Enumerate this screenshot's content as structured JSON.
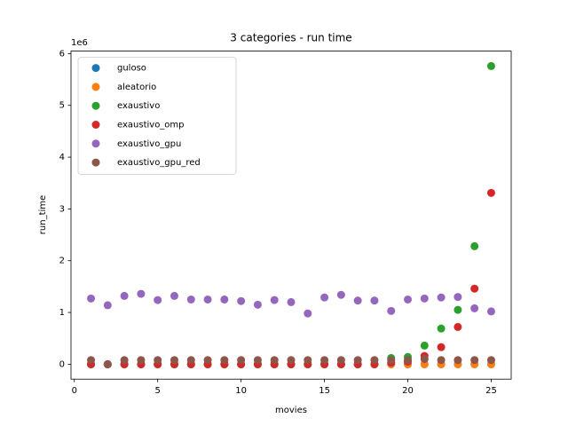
{
  "chart_data": {
    "type": "scatter",
    "title": "3 categories - run time",
    "x_label": "movies",
    "y_label": "run_time",
    "y_offset_text": "1e6",
    "x": [
      1,
      2,
      3,
      4,
      5,
      6,
      7,
      8,
      9,
      10,
      11,
      12,
      13,
      14,
      15,
      16,
      17,
      18,
      19,
      20,
      21,
      22,
      23,
      24,
      25
    ],
    "series": [
      {
        "name": "guloso",
        "color": "#1f77b4",
        "values": [
          0,
          0,
          0,
          0,
          0,
          0,
          0,
          0,
          0,
          0,
          0,
          0,
          0,
          0,
          0,
          0,
          0,
          0,
          0,
          0,
          0,
          0,
          0,
          0,
          0
        ]
      },
      {
        "name": "aleatorio",
        "color": "#ff7f0e",
        "values": [
          0,
          0,
          0,
          0,
          0,
          0,
          0,
          0,
          0,
          0,
          0,
          0,
          0,
          0,
          0,
          0,
          0,
          0,
          0,
          0,
          0,
          0,
          0,
          0,
          0
        ]
      },
      {
        "name": "exaustivo",
        "color": "#2ca02c",
        "values": [
          0,
          0,
          0,
          0,
          0,
          0,
          0,
          0,
          0,
          0,
          0,
          0,
          0,
          0,
          0,
          0,
          0,
          0,
          0.12,
          0.14,
          0.36,
          0.69,
          1.05,
          2.28,
          5.76
        ]
      },
      {
        "name": "exaustivo_omp",
        "color": "#d62728",
        "values": [
          0,
          0,
          0,
          0,
          0,
          0,
          0,
          0,
          0,
          0,
          0,
          0,
          0,
          0,
          0,
          0,
          0,
          0,
          0.03,
          0.05,
          0.16,
          0.33,
          0.72,
          1.46,
          3.31
        ]
      },
      {
        "name": "exaustivo_gpu",
        "color": "#9467bd",
        "values": [
          1.27,
          1.14,
          1.32,
          1.36,
          1.24,
          1.32,
          1.25,
          1.25,
          1.25,
          1.22,
          1.15,
          1.24,
          1.2,
          0.98,
          1.29,
          1.34,
          1.23,
          1.23,
          1.03,
          1.25,
          1.27,
          1.29,
          1.3,
          1.08,
          1.02
        ]
      },
      {
        "name": "exaustivo_gpu_red",
        "color": "#8c564b",
        "values": [
          0.08,
          0.0,
          0.08,
          0.08,
          0.08,
          0.08,
          0.08,
          0.08,
          0.08,
          0.08,
          0.08,
          0.08,
          0.08,
          0.08,
          0.08,
          0.08,
          0.08,
          0.08,
          0.08,
          0.08,
          0.1,
          0.08,
          0.08,
          0.08,
          0.08
        ]
      }
    ],
    "xlim": [
      -0.2,
      26.2
    ],
    "ylim": [
      -0.288,
      6.048
    ],
    "xticks": [
      0,
      5,
      10,
      15,
      20,
      25
    ],
    "yticks": [
      0,
      1,
      2,
      3,
      4,
      5,
      6
    ],
    "legend": "upper left"
  }
}
